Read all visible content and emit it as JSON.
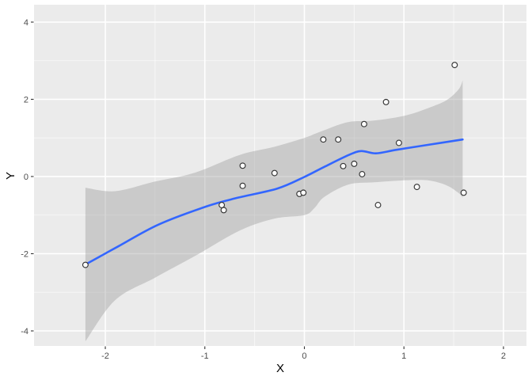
{
  "chart_data": {
    "type": "scatter",
    "title": "",
    "xlabel": "X",
    "ylabel": "Y",
    "grid": "on",
    "legend": "none",
    "xlim": [
      -2.716,
      2.231
    ],
    "ylim": [
      -4.39,
      4.45
    ],
    "x_major_ticks": [
      -2,
      -1,
      0,
      1,
      2
    ],
    "x_minor_ticks": [
      -1.5,
      -0.5,
      0.5,
      1.5
    ],
    "y_major_ticks": [
      -4,
      -2,
      0,
      2,
      4
    ],
    "y_minor_ticks": [
      -3,
      -1,
      1,
      3
    ],
    "points": [
      [
        -2.2,
        -2.29
      ],
      [
        -0.83,
        -0.74
      ],
      [
        -0.81,
        -0.87
      ],
      [
        -0.62,
        0.28
      ],
      [
        -0.62,
        -0.24
      ],
      [
        -0.3,
        0.09
      ],
      [
        -0.05,
        -0.45
      ],
      [
        -0.01,
        -0.42
      ],
      [
        0.19,
        0.96
      ],
      [
        0.34,
        0.96
      ],
      [
        0.39,
        0.27
      ],
      [
        0.5,
        0.33
      ],
      [
        0.58,
        0.06
      ],
      [
        0.6,
        1.36
      ],
      [
        0.74,
        -0.74
      ],
      [
        0.82,
        1.93
      ],
      [
        0.95,
        0.87
      ],
      [
        1.13,
        -0.27
      ],
      [
        1.51,
        2.89
      ],
      [
        1.6,
        -0.42
      ]
    ],
    "smooth_line": [
      [
        -2.2,
        -2.28
      ],
      [
        -1.87,
        -1.81
      ],
      [
        -1.47,
        -1.25
      ],
      [
        -0.99,
        -0.78
      ],
      [
        -0.67,
        -0.55
      ],
      [
        -0.27,
        -0.31
      ],
      [
        0.0,
        -0.01
      ],
      [
        0.2,
        0.25
      ],
      [
        0.44,
        0.55
      ],
      [
        0.57,
        0.66
      ],
      [
        0.72,
        0.6
      ],
      [
        0.92,
        0.69
      ],
      [
        1.24,
        0.82
      ],
      [
        1.59,
        0.96
      ]
    ],
    "ribbon": {
      "x": [
        -2.2,
        -1.9,
        -1.5,
        -1.1,
        -0.65,
        -0.3,
        0.0,
        0.1,
        0.2,
        0.44,
        0.7,
        1.0,
        1.24,
        1.43,
        1.55,
        1.59
      ],
      "upper": [
        -0.29,
        -0.38,
        -0.13,
        0.1,
        0.56,
        0.77,
        1.0,
        1.1,
        1.2,
        1.41,
        1.45,
        1.57,
        1.77,
        1.98,
        2.26,
        2.49
      ],
      "lower": [
        -4.27,
        -3.2,
        -2.62,
        -2.06,
        -1.4,
        -1.09,
        -1.0,
        -0.82,
        -0.53,
        -0.21,
        -0.15,
        -0.1,
        -0.1,
        -0.23,
        -0.43,
        -0.55
      ]
    },
    "colors": {
      "panel_background": "#EBEBEB",
      "grid_line": "#FFFFFF",
      "ribbon_fill": "#999999",
      "ribbon_opacity": 0.4,
      "smooth_line": "#3366FF",
      "point_fill": "#FFFFFF",
      "point_stroke": "#333333",
      "tick_mark": "#333333",
      "tick_label": "#4D4D4D",
      "axis_title": "#000000"
    }
  }
}
